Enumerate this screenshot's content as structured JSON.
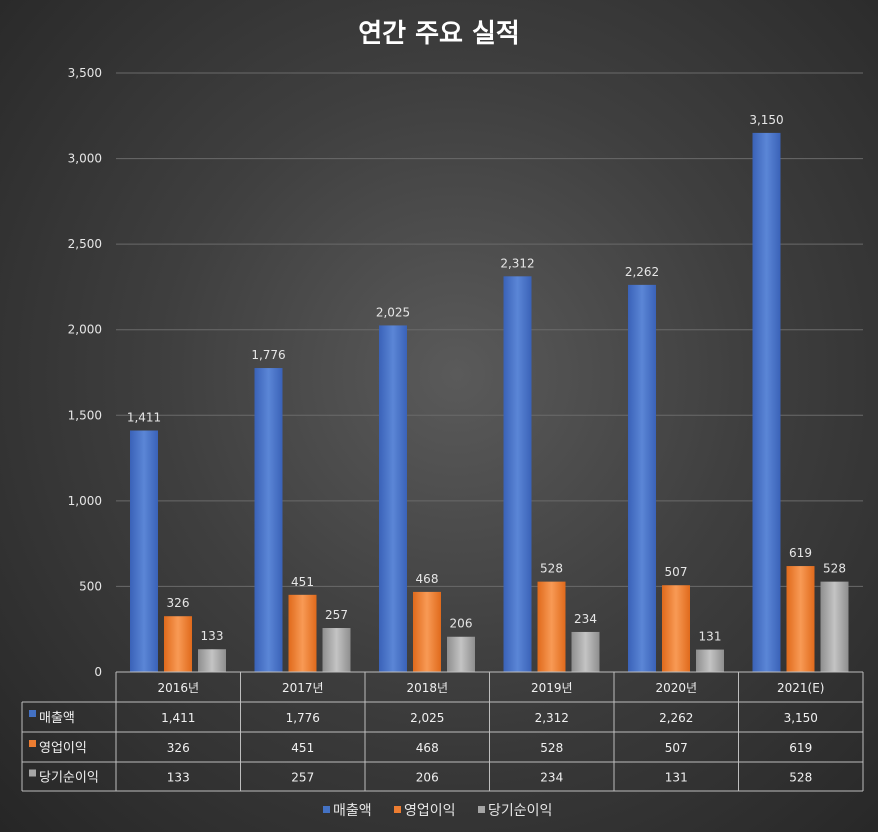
{
  "chart_data": {
    "type": "bar",
    "title": "연간 주요 실적",
    "categories": [
      "2016년",
      "2017년",
      "2018년",
      "2019년",
      "2020년",
      "2021(E)"
    ],
    "series": [
      {
        "name": "매출액",
        "color": "#4472c4",
        "values": [
          1411,
          1776,
          2025,
          2312,
          2262,
          3150
        ],
        "labels": [
          "1,411",
          "1,776",
          "2,025",
          "2,312",
          "2,262",
          "3,150"
        ]
      },
      {
        "name": "영업이익",
        "color": "#ed7d31",
        "values": [
          326,
          451,
          468,
          528,
          507,
          619
        ],
        "labels": [
          "326",
          "451",
          "468",
          "528",
          "507",
          "619"
        ]
      },
      {
        "name": "당기순이익",
        "color": "#a5a5a5",
        "values": [
          133,
          257,
          206,
          234,
          131,
          528
        ],
        "labels": [
          "133",
          "257",
          "206",
          "234",
          "131",
          "528"
        ]
      }
    ],
    "ylim": [
      0,
      3500
    ],
    "yticks": [
      0,
      500,
      1000,
      1500,
      2000,
      2500,
      3000,
      3500
    ],
    "ytick_labels": [
      "0",
      "500",
      "1,000",
      "1,500",
      "2,000",
      "2,500",
      "3,000",
      "3,500"
    ],
    "xlabel": "",
    "ylabel": "",
    "grid": true,
    "legend": "bottom",
    "data_table": true
  }
}
